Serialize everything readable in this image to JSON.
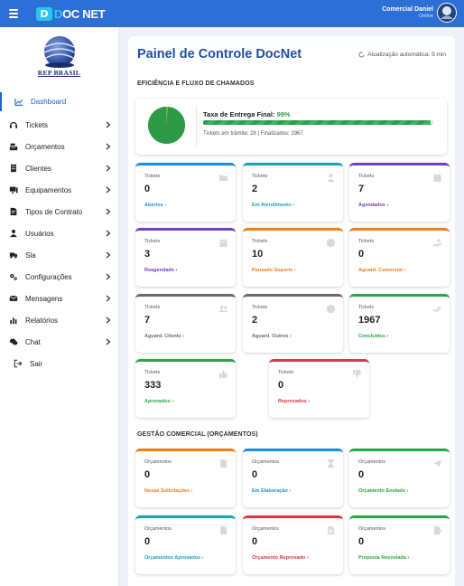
{
  "topbar": {
    "logo_badge": "D",
    "logo_c": "D",
    "logo_rest": "OC NET",
    "user_name": "Comercial Daniel",
    "user_status": "Online"
  },
  "sidebar": {
    "brand_text": "REP BRASIL",
    "items": [
      {
        "label": "Dashboard",
        "icon": "chart-line-icon",
        "active": true
      },
      {
        "label": "Tickets",
        "icon": "headset-icon"
      },
      {
        "label": "Orçamentos",
        "icon": "cash-register-icon"
      },
      {
        "label": "Clientes",
        "icon": "building-icon"
      },
      {
        "label": "Equipamentos",
        "icon": "desktop-icon"
      },
      {
        "label": "Tipos de Contrato",
        "icon": "file-contract-icon"
      },
      {
        "label": "Usuários",
        "icon": "user-icon"
      },
      {
        "label": "Sla",
        "icon": "truck-icon"
      },
      {
        "label": "Configurações",
        "icon": "gears-icon"
      },
      {
        "label": "Mensagens",
        "icon": "envelope-icon"
      },
      {
        "label": "Relatórios",
        "icon": "bar-chart-icon"
      },
      {
        "label": "Chat",
        "icon": "comments-icon"
      },
      {
        "label": "Sair",
        "icon": "sign-out-icon"
      }
    ]
  },
  "main": {
    "title": "Painel de Controle DocNet",
    "auto_update": "Atualização automática: 5 min",
    "section_efficiency": "EFICIÊNCIA E FLUXO DE CHAMADOS",
    "efficiency": {
      "label": "Taxa de Entrega Final:",
      "percent_text": "99%",
      "percent": 99,
      "sub": "Tickets em trâmite: 28 | Finalizados: 1967"
    },
    "ticket_cards": [
      {
        "tag": "Tickets",
        "value": "0",
        "link": "Abertos",
        "color": "#1d8fd8",
        "icon": "folder-icon"
      },
      {
        "tag": "Tickets",
        "value": "2",
        "link": "Em Atendimento",
        "color": "#17a2b8",
        "icon": "user-tie-icon"
      },
      {
        "tag": "Tickets",
        "value": "7",
        "link": "Agendados",
        "color": "#6f42c1",
        "icon": "calendar-icon"
      },
      {
        "tag": "Tickets",
        "value": "3",
        "link": "Reagendado",
        "color": "#6f42c1",
        "icon": "calendar-alt-icon"
      },
      {
        "tag": "Tickets",
        "value": "10",
        "link": "Pausado Suporte",
        "color": "#f07d1a",
        "icon": "pause-circle-icon"
      },
      {
        "tag": "Tickets",
        "value": "0",
        "link": "Aguard. Comercial",
        "color": "#f07d1a",
        "icon": "hand-holding-icon"
      },
      {
        "tag": "Tickets",
        "value": "7",
        "link": "Aguard. Cliente",
        "color": "#666c72",
        "icon": "users-icon"
      },
      {
        "tag": "Tickets",
        "value": "2",
        "link": "Aguard. Outros",
        "color": "#666c72",
        "icon": "clock-icon"
      },
      {
        "tag": "Tickets",
        "value": "1967",
        "link": "Concluídos",
        "color": "#28a745",
        "icon": "check-double-icon"
      },
      {
        "tag": "Tickets",
        "value": "333",
        "link": "Aprovados",
        "color": "#28a745",
        "icon": "thumbs-up-icon"
      },
      {
        "tag": "Tickets",
        "value": "0",
        "link": "Reprovados",
        "color": "#dc3545",
        "icon": "thumbs-down-icon"
      }
    ],
    "section_commercial": "GESTÃO COMERCIAL (ORÇAMENTOS)",
    "budget_cards": [
      {
        "tag": "Orçamentos",
        "value": "0",
        "link": "Novas Solicitações",
        "color": "#f07d1a",
        "icon": "file-icon"
      },
      {
        "tag": "Orçamentos",
        "value": "0",
        "link": "Em Elaboração",
        "color": "#1d8fd8",
        "icon": "hourglass-icon"
      },
      {
        "tag": "Orçamentos",
        "value": "0",
        "link": "Orçamento Enviado",
        "color": "#28a745",
        "icon": "paper-plane-icon"
      },
      {
        "tag": "Orçamentos",
        "value": "0",
        "link": "Orçamentos Aprovados",
        "color": "#17a2b8",
        "icon": "file-signature-icon"
      },
      {
        "tag": "Orçamentos",
        "value": "0",
        "link": "Orçamento Reprovado",
        "color": "#dc3545",
        "icon": "file-excel-icon"
      },
      {
        "tag": "Orçamentos",
        "value": "0",
        "link": "Proposta Reenviada",
        "color": "#28a745",
        "icon": "file-export-icon"
      }
    ]
  }
}
